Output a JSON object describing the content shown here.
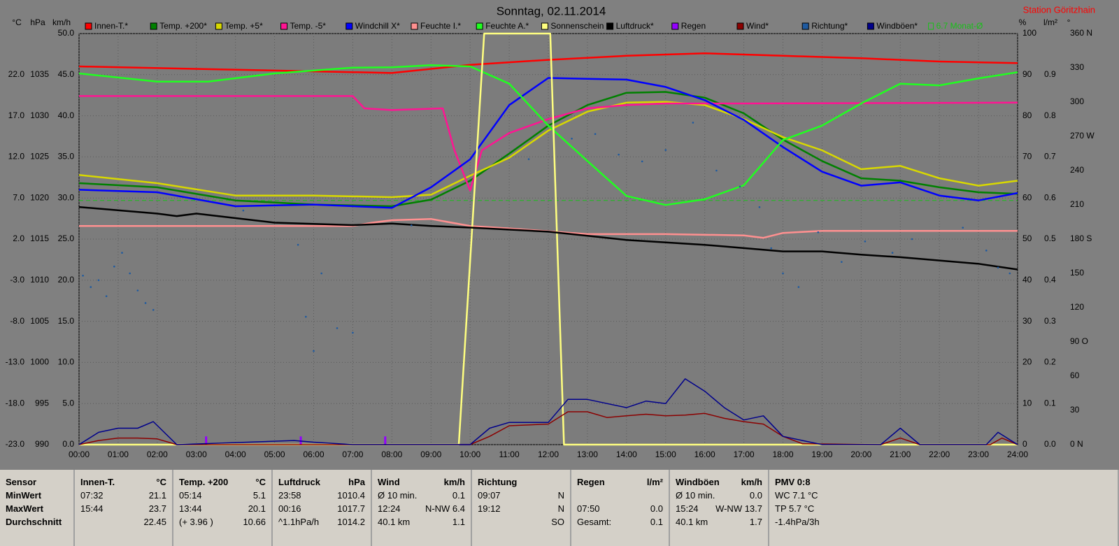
{
  "chart_data": {
    "type": "line",
    "title": "Sonntag, 02.11.2014",
    "station": "Station Göritzhain",
    "grid": true,
    "xlim": [
      0,
      24
    ],
    "xticks": [
      {
        "value": 0,
        "label": "00:00"
      },
      {
        "value": 1,
        "label": "01:00"
      },
      {
        "value": 2,
        "label": "02:00"
      },
      {
        "value": 3,
        "label": "03:00"
      },
      {
        "value": 4,
        "label": "04:00"
      },
      {
        "value": 5,
        "label": "05:00"
      },
      {
        "value": 6,
        "label": "06:00"
      },
      {
        "value": 7,
        "label": "07:00"
      },
      {
        "value": 8,
        "label": "08:00"
      },
      {
        "value": 9,
        "label": "09:00"
      },
      {
        "value": 10,
        "label": "10:00"
      },
      {
        "value": 11,
        "label": "11:00"
      },
      {
        "value": 12,
        "label": "12:00"
      },
      {
        "value": 13,
        "label": "13:00"
      },
      {
        "value": 14,
        "label": "14:00"
      },
      {
        "value": 15,
        "label": "15:00"
      },
      {
        "value": 16,
        "label": "16:00"
      },
      {
        "value": 17,
        "label": "17:00"
      },
      {
        "value": 18,
        "label": "18:00"
      },
      {
        "value": 19,
        "label": "19:00"
      },
      {
        "value": 20,
        "label": "20:00"
      },
      {
        "value": 21,
        "label": "21:00"
      },
      {
        "value": 22,
        "label": "22:00"
      },
      {
        "value": 23,
        "label": "23:00"
      },
      {
        "value": 24,
        "label": "24:00"
      }
    ],
    "axes": {
      "temp": {
        "unit": "°C",
        "side": "left",
        "lim": [
          -23,
          27
        ],
        "ticks": [
          {
            "value": -23,
            "label": "-23.0"
          },
          {
            "value": -18,
            "label": "-18.0"
          },
          {
            "value": -13,
            "label": "-13.0"
          },
          {
            "value": -8,
            "label": "-8.0"
          },
          {
            "value": -3,
            "label": "-3.0"
          },
          {
            "value": 2,
            "label": "2.0"
          },
          {
            "value": 7,
            "label": "7.0"
          },
          {
            "value": 12,
            "label": "12.0"
          },
          {
            "value": 17,
            "label": "17.0"
          },
          {
            "value": 22,
            "label": "22.0"
          }
        ]
      },
      "hpa": {
        "unit": "hPa",
        "side": "left",
        "lim": [
          990,
          1040
        ],
        "ticks": [
          990,
          995,
          1000,
          1005,
          1010,
          1015,
          1020,
          1025,
          1030,
          1035
        ]
      },
      "kmh": {
        "unit": "km/h",
        "side": "left",
        "lim": [
          0,
          50
        ],
        "ticks": [
          {
            "value": 0,
            "label": "0.0"
          },
          {
            "value": 5,
            "label": "5.0"
          },
          {
            "value": 10,
            "label": "10.0"
          },
          {
            "value": 15,
            "label": "15.0"
          },
          {
            "value": 20,
            "label": "20.0"
          },
          {
            "value": 25,
            "label": "25.0"
          },
          {
            "value": 30,
            "label": "30.0"
          },
          {
            "value": 35,
            "label": "35.0"
          },
          {
            "value": 40,
            "label": "40.0"
          },
          {
            "value": 45,
            "label": "45.0"
          },
          {
            "value": 50,
            "label": "50.0"
          }
        ]
      },
      "pct": {
        "unit": "%",
        "side": "right",
        "lim": [
          0,
          100
        ],
        "ticks": [
          0,
          10,
          20,
          30,
          40,
          50,
          60,
          70,
          80,
          90,
          100
        ]
      },
      "rain": {
        "unit": "l/m²",
        "side": "right",
        "lim": [
          0,
          1
        ],
        "ticks": [
          {
            "value": 0,
            "label": "0.0"
          },
          0.1,
          0.2,
          0.3,
          0.4,
          0.5,
          0.6,
          0.7,
          0.8,
          0.9
        ]
      },
      "deg": {
        "unit": "°",
        "side": "right",
        "lim": [
          0,
          360
        ],
        "ticks": [
          {
            "value": 0,
            "label": "0 N"
          },
          30,
          60,
          {
            "value": 90,
            "label": "90 O"
          },
          120,
          150,
          {
            "value": 180,
            "label": "180 S"
          },
          210,
          240,
          {
            "value": 270,
            "label": "270 W"
          },
          300,
          330,
          {
            "value": 360,
            "label": "360 N"
          }
        ]
      }
    },
    "monthly_avg": {
      "label": "6.7 Monat-Ø",
      "value": 6.7,
      "axis": "temp",
      "color": "#18c018"
    },
    "series": [
      {
        "name": "Innen-T.*",
        "color": "#ff0000",
        "axis": "temp",
        "x": [
          0,
          5,
          8,
          10,
          12,
          14,
          16,
          18,
          20,
          22,
          24
        ],
        "values": [
          23.0,
          22.5,
          22.2,
          23.2,
          23.8,
          24.3,
          24.6,
          24.3,
          24.0,
          23.6,
          23.4
        ]
      },
      {
        "name": "Temp. +200*",
        "color": "#008000",
        "axis": "temp",
        "x": [
          0,
          2,
          4,
          6,
          8,
          9,
          10,
          11,
          12,
          13,
          14,
          15,
          16,
          17,
          18,
          19,
          20,
          21,
          22,
          23,
          24
        ],
        "values": [
          8.8,
          8.3,
          6.7,
          6.2,
          6.0,
          6.8,
          9.1,
          12.4,
          15.8,
          18.3,
          19.8,
          19.9,
          19.2,
          17.3,
          14.1,
          11.5,
          9.4,
          9.1,
          8.3,
          7.7,
          7.5
        ]
      },
      {
        "name": "Temp. +5*",
        "color": "#d8d800",
        "axis": "temp",
        "x": [
          0,
          2,
          4,
          6,
          8,
          9,
          10,
          11,
          12,
          13,
          14,
          15,
          16,
          17,
          18,
          19,
          20,
          21,
          22,
          23,
          24
        ],
        "values": [
          9.8,
          8.8,
          7.3,
          7.3,
          7.1,
          7.4,
          9.7,
          11.9,
          15.2,
          17.5,
          18.6,
          18.7,
          18.3,
          16.6,
          14.4,
          12.8,
          10.5,
          10.9,
          9.4,
          8.5,
          9.1
        ]
      },
      {
        "name": "Temp. -5*",
        "color": "#ff1493",
        "axis": "temp",
        "x": [
          0,
          7,
          7.3,
          8,
          9.3,
          9.6,
          10,
          10.3,
          11,
          12,
          13,
          14,
          15,
          17,
          24
        ],
        "values": [
          19.4,
          19.4,
          17.9,
          17.7,
          17.9,
          12.8,
          7.9,
          12.8,
          14.9,
          16.6,
          17.9,
          18.3,
          18.5,
          18.5,
          18.6
        ]
      },
      {
        "name": "Windchill X*",
        "color": "#0000ff",
        "axis": "temp",
        "x": [
          0,
          2,
          4,
          6,
          8,
          9,
          10,
          11,
          12,
          13,
          14,
          15,
          16,
          17,
          18,
          19,
          20,
          21,
          22,
          23,
          24
        ],
        "values": [
          8.0,
          7.7,
          6.0,
          6.2,
          5.8,
          8.3,
          11.7,
          18.3,
          21.6,
          21.5,
          21.4,
          20.5,
          18.9,
          16.5,
          13.2,
          10.2,
          8.5,
          8.9,
          7.3,
          6.7,
          7.6
        ]
      },
      {
        "name": "Feuchte I.*",
        "color": "#ff9090",
        "axis": "pct",
        "x": [
          0,
          7,
          7.5,
          8,
          9,
          10,
          11,
          12,
          13,
          15,
          17,
          17.5,
          18,
          19,
          24
        ],
        "values": [
          53.2,
          53.2,
          54.0,
          54.6,
          54.9,
          53.2,
          52.6,
          51.9,
          51.2,
          51.2,
          50.9,
          50.3,
          51.5,
          52.0,
          52.0
        ]
      },
      {
        "name": "Feuchte A.*",
        "color": "#20ff20",
        "axis": "pct",
        "x": [
          0,
          2,
          3.3,
          5,
          7,
          8,
          9,
          10,
          11,
          12,
          13,
          14,
          15,
          16,
          17,
          18,
          19,
          20,
          21,
          22,
          23,
          24
        ],
        "values": [
          90.3,
          88.3,
          88.3,
          90.3,
          91.7,
          91.8,
          92.3,
          92.0,
          87.8,
          77.6,
          69.0,
          60.5,
          58.3,
          59.7,
          63.1,
          74.1,
          77.6,
          83.0,
          87.8,
          87.4,
          89.1,
          90.6
        ]
      },
      {
        "name": "Sonnenschein",
        "color": "#ffff80",
        "axis": "pct",
        "x": [
          0,
          9.71,
          10.36,
          12.05,
          12.4,
          24
        ],
        "values": [
          0,
          0,
          100,
          100,
          0,
          0
        ]
      },
      {
        "name": "Luftdruck*",
        "color": "#000000",
        "axis": "hpa",
        "x": [
          0,
          2,
          2.5,
          3,
          5,
          7,
          8,
          9,
          10,
          12,
          13,
          14,
          15,
          16,
          17,
          18,
          19,
          20,
          21,
          22,
          23,
          24
        ],
        "values": [
          1018.9,
          1018.1,
          1017.8,
          1018.1,
          1017.0,
          1016.7,
          1016.9,
          1016.6,
          1016.4,
          1015.9,
          1015.4,
          1014.9,
          1014.6,
          1014.3,
          1013.9,
          1013.5,
          1013.5,
          1013.1,
          1012.8,
          1012.4,
          1012.0,
          1011.3
        ]
      },
      {
        "name": "Regen",
        "color": "#9400ff",
        "axis": "rain",
        "kind": "bar",
        "x": [
          3.25,
          5.67,
          7.83
        ],
        "values": [
          0.02,
          0.02,
          0.02
        ]
      },
      {
        "name": "Wind*",
        "color": "#8b0000",
        "axis": "kmh",
        "x": [
          0,
          0.5,
          1,
          1.5,
          2,
          2.5,
          10,
          10.5,
          11,
          12,
          12.5,
          13,
          13.5,
          14,
          14.5,
          15,
          15.5,
          16,
          16.5,
          17,
          17.5,
          18,
          18.5,
          20.5,
          21,
          21.5,
          23.3,
          23.6,
          24
        ],
        "values": [
          0,
          0.5,
          0.8,
          0.8,
          0.7,
          0,
          0,
          1.0,
          2.3,
          2.5,
          4.0,
          4.0,
          3.3,
          3.5,
          3.7,
          3.5,
          3.6,
          3.8,
          3.2,
          2.8,
          2.5,
          1.0,
          0.1,
          0,
          0.8,
          0,
          0,
          0.8,
          0
        ]
      },
      {
        "name": "Richtung*",
        "color": "#1e5aa0",
        "axis": "deg",
        "kind": "scatter",
        "x": [
          0.1,
          0.3,
          0.5,
          0.7,
          0.9,
          1.1,
          1.3,
          1.5,
          1.7,
          1.9,
          4.2,
          5.6,
          5.8,
          6.0,
          6.2,
          6.6,
          7.0,
          8.5,
          11.5,
          12.6,
          13.2,
          13.8,
          14.4,
          15.0,
          15.7,
          16.3,
          16.9,
          17.4,
          17.7,
          18.0,
          18.4,
          18.9,
          19.5,
          20.1,
          20.8,
          21.3,
          22.6,
          23.2,
          23.5,
          23.8
        ],
        "values": [
          148,
          138,
          144,
          130,
          156,
          168,
          150,
          135,
          124,
          118,
          205,
          175,
          112,
          82,
          150,
          102,
          98,
          192,
          250,
          268,
          272,
          254,
          248,
          258,
          282,
          240,
          226,
          208,
          172,
          150,
          138,
          186,
          160,
          178,
          168,
          180,
          190,
          170,
          155,
          150
        ]
      },
      {
        "name": "Windböen*",
        "color": "#00008b",
        "axis": "kmh",
        "x": [
          0,
          0.5,
          1,
          1.5,
          1.9,
          2.5,
          5.5,
          6,
          7,
          10,
          10.5,
          11,
          12,
          12.5,
          13,
          14,
          14.5,
          15,
          15.5,
          16,
          16.5,
          17,
          17.5,
          18,
          18.5,
          19,
          20.5,
          21,
          21.5,
          23.2,
          23.5,
          24
        ],
        "values": [
          0,
          1.5,
          2.0,
          2.0,
          2.8,
          0,
          0.5,
          0.3,
          0,
          0,
          2.0,
          2.7,
          2.7,
          5.5,
          5.5,
          4.5,
          5.3,
          5.0,
          8.0,
          6.5,
          4.5,
          3.0,
          3.5,
          1.0,
          0.5,
          0,
          0,
          2.0,
          0,
          0,
          1.5,
          0
        ]
      }
    ]
  },
  "table": {
    "columns": [
      {
        "header": [
          "Sensor"
        ],
        "rows": [
          [
            "MinWert"
          ],
          [
            "MaxWert"
          ],
          [
            "Durchschnitt"
          ]
        ]
      },
      {
        "header": [
          "Innen-T.",
          "°C"
        ],
        "rows": [
          [
            "07:32",
            "21.1"
          ],
          [
            "15:44",
            "23.7"
          ],
          [
            "22.45"
          ]
        ]
      },
      {
        "header": [
          "Temp. +200",
          "°C"
        ],
        "rows": [
          [
            "05:14",
            "5.1"
          ],
          [
            "13:44",
            "20.1"
          ],
          [
            "(+ 3.96 )",
            "10.66"
          ]
        ]
      },
      {
        "header": [
          "Luftdruck",
          "hPa"
        ],
        "rows": [
          [
            "23:58",
            "1010.4"
          ],
          [
            "00:16",
            "1017.7"
          ],
          [
            "^1.1hPa/h",
            "1014.2"
          ]
        ]
      },
      {
        "header": [
          "Wind",
          "km/h"
        ],
        "rows": [
          [
            "Ø 10 min.",
            "0.1"
          ],
          [
            "12:24",
            "N-NW 6.4"
          ],
          [
            "40.1 km",
            "1.1"
          ]
        ]
      },
      {
        "header": [
          "Richtung"
        ],
        "rows": [
          [
            "09:07",
            "N"
          ],
          [
            "19:12",
            "N"
          ],
          [
            "SO"
          ]
        ]
      },
      {
        "header": [
          "Regen",
          "l/m²"
        ],
        "rows": [
          [],
          [
            "07:50",
            "0.0"
          ],
          [
            "Gesamt:",
            "0.1"
          ]
        ]
      },
      {
        "header": [
          "Windböen",
          "km/h"
        ],
        "rows": [
          [
            "Ø 10 min.",
            "0.0"
          ],
          [
            "15:24",
            "W-NW 13.7"
          ],
          [
            "40.1 km",
            "1.7"
          ]
        ]
      },
      {
        "header": [
          "PMV 0:8"
        ],
        "rows": [
          [
            "WC 7.1 °C"
          ],
          [
            "TP 5.7 °C"
          ],
          [
            "-1.4hPa/3h"
          ]
        ]
      }
    ]
  }
}
